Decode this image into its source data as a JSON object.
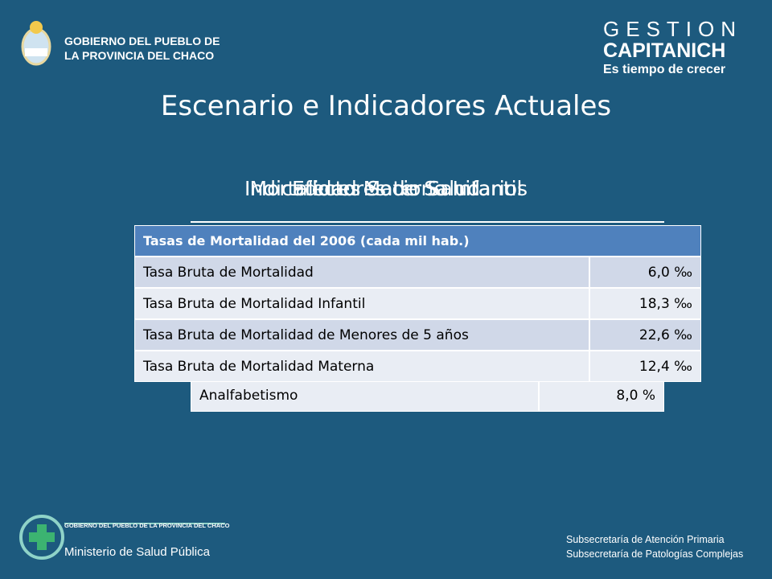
{
  "header": {
    "left_logo": {
      "line1": "GOBIERNO DEL PUEBLO DE",
      "line2": "LA PROVINCIA DEL CHACO"
    },
    "right_logo": {
      "line1": "GESTION",
      "line2": "CAPITANICH",
      "line3": "Es tiempo de crecer"
    }
  },
  "title": "Escenario e Indicadores Actuales",
  "subtitles": [
    "Indicadores Socio Sanitarios",
    "Efectores de Salud",
    "Mortalidad Materno Infantil"
  ],
  "back_table": {
    "rows": [
      [
        "Analfabetismo",
        "8,0 %"
      ]
    ]
  },
  "table": {
    "header": "Tasas de Mortalidad del 2006 (cada mil hab.)",
    "rows": [
      [
        "Tasa Bruta de Mortalidad",
        "6,0 ‰"
      ],
      [
        "Tasa Bruta de Mortalidad Infantil",
        "18,3 ‰"
      ],
      [
        "Tasa Bruta de Mortalidad de Menores de 5 años",
        "22,6 ‰"
      ],
      [
        "Tasa Bruta de Mortalidad Materna",
        "12,4 ‰"
      ]
    ]
  },
  "footer": {
    "ministry_line1": "GOBIERNO DEL PUEBLO DE LA PROVINCIA DEL CHACO",
    "ministry_line2": "Ministerio de Salud Pública",
    "right_line1": "Subsecretaría de Atención Primaria",
    "right_line2": "Subsecretaría de Patologías Complejas"
  }
}
